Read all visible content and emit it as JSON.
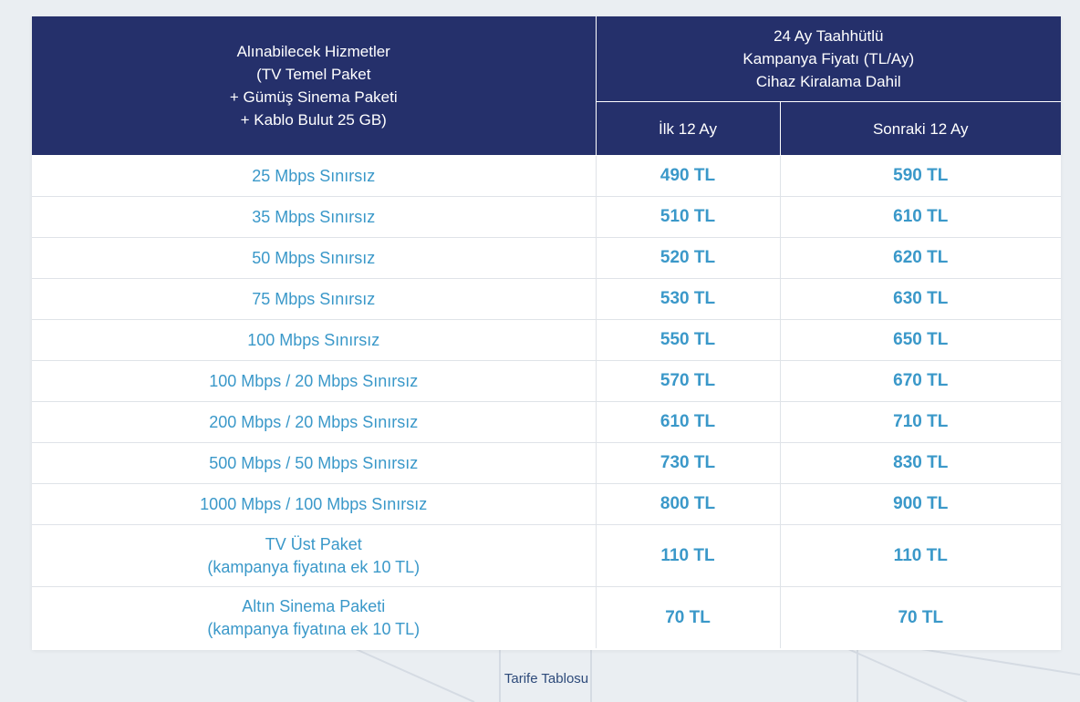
{
  "table": {
    "header": {
      "services_lines": [
        "Alınabilecek Hizmetler",
        "(TV Temel Paket",
        "+ Gümüş Sinema Paketi",
        "+ Kablo Bulut 25 GB)"
      ],
      "campaign_lines": [
        "24 Ay Taahhütlü",
        "Kampanya Fiyatı (TL/Ay)",
        "Cihaz Kiralama Dahil"
      ],
      "first_12": "İlk 12 Ay",
      "next_12": "Sonraki 12 Ay"
    },
    "rows": [
      {
        "service_lines": [
          "25 Mbps Sınırsız"
        ],
        "first": "490 TL",
        "next": "590 TL"
      },
      {
        "service_lines": [
          "35 Mbps Sınırsız"
        ],
        "first": "510 TL",
        "next": "610 TL"
      },
      {
        "service_lines": [
          "50 Mbps Sınırsız"
        ],
        "first": "520 TL",
        "next": "620 TL"
      },
      {
        "service_lines": [
          "75 Mbps Sınırsız"
        ],
        "first": "530 TL",
        "next": "630 TL"
      },
      {
        "service_lines": [
          "100 Mbps Sınırsız"
        ],
        "first": "550 TL",
        "next": "650 TL"
      },
      {
        "service_lines": [
          "100 Mbps / 20 Mbps Sınırsız"
        ],
        "first": "570 TL",
        "next": "670 TL"
      },
      {
        "service_lines": [
          "200 Mbps / 20 Mbps Sınırsız"
        ],
        "first": "610 TL",
        "next": "710 TL"
      },
      {
        "service_lines": [
          "500 Mbps / 50 Mbps Sınırsız"
        ],
        "first": "730 TL",
        "next": "830 TL"
      },
      {
        "service_lines": [
          "1000 Mbps / 100 Mbps Sınırsız"
        ],
        "first": "800 TL",
        "next": "900 TL"
      },
      {
        "service_lines": [
          "TV Üst Paket",
          "(kampanya fiyatına ek 10 TL)"
        ],
        "first": "110 TL",
        "next": "110 TL"
      },
      {
        "service_lines": [
          "Altın Sinema Paketi",
          "(kampanya fiyatına ek 10 TL)"
        ],
        "first": "70 TL",
        "next": "70 TL"
      }
    ]
  },
  "caption": "Tarife Tablosu",
  "colors": {
    "header_bg": "#25306b",
    "header_text": "#ffffff",
    "cell_text": "#3a98c9",
    "page_bg": "#eaeef2",
    "caption_text": "#2d4a7a"
  }
}
